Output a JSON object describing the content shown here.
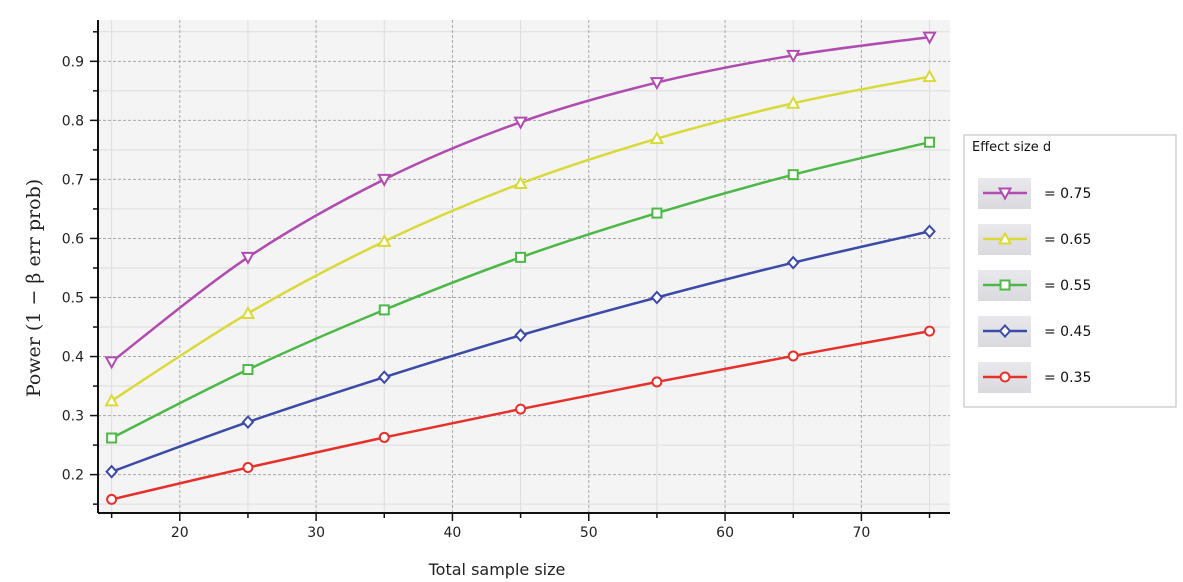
{
  "chart_data": {
    "type": "line",
    "xlabel": "Total sample size",
    "ylabel": "Power (1 − β err prob)",
    "xlim": [
      14,
      76.5
    ],
    "ylim": [
      0.135,
      0.97
    ],
    "x_ticks": [
      20,
      30,
      40,
      50,
      60,
      70
    ],
    "y_ticks": [
      0.2,
      0.3,
      0.4,
      0.5,
      0.6,
      0.7,
      0.8,
      0.9
    ],
    "grid": true,
    "x": [
      15,
      25,
      35,
      45,
      55,
      65,
      75
    ],
    "legend": {
      "title": "Effect size d",
      "placement": "right"
    },
    "series": [
      {
        "name": "= 0.75",
        "color": "#b04cb0",
        "marker": "triangle-down",
        "values": [
          0.391,
          0.568,
          0.7,
          0.797,
          0.864,
          0.91,
          0.941
        ]
      },
      {
        "name": "= 0.65",
        "color": "#d9d93a",
        "marker": "triangle-up",
        "values": [
          0.325,
          0.473,
          0.595,
          0.693,
          0.769,
          0.829,
          0.874
        ]
      },
      {
        "name": "= 0.55",
        "color": "#4db848",
        "marker": "square",
        "values": [
          0.262,
          0.378,
          0.479,
          0.568,
          0.643,
          0.708,
          0.763
        ]
      },
      {
        "name": "= 0.45",
        "color": "#3c4aa8",
        "marker": "diamond",
        "values": [
          0.205,
          0.289,
          0.365,
          0.436,
          0.5,
          0.559,
          0.612
        ]
      },
      {
        "name": "= 0.35",
        "color": "#e6302b",
        "marker": "circle",
        "values": [
          0.158,
          0.212,
          0.263,
          0.311,
          0.357,
          0.401,
          0.443
        ]
      }
    ]
  }
}
